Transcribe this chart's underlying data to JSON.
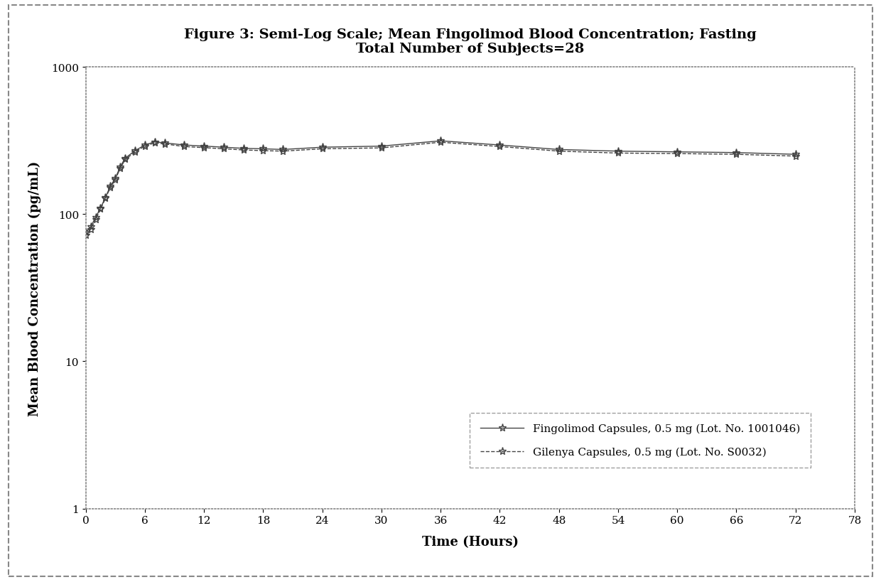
{
  "title_line1": "Figure 3: Semi-Log Scale; Mean Fingolimod Blood Concentration; Fasting",
  "title_line2": "Total Number of Subjects=28",
  "xlabel": "Time (Hours)",
  "ylabel": "Mean Blood Concentration (pg/mL)",
  "xlim": [
    0,
    78
  ],
  "ylim": [
    1,
    1000
  ],
  "xticks": [
    0,
    6,
    12,
    18,
    24,
    30,
    36,
    42,
    48,
    54,
    60,
    66,
    72,
    78
  ],
  "yticks": [
    1,
    10,
    100,
    1000
  ],
  "background_color": "#ffffff",
  "plot_bg_color": "#ffffff",
  "outer_border_color": "#888888",
  "series1_label": "Fingolimod Capsules, 0.5 mg (Lot. No. 1001046)",
  "series2_label": "Gilenya Capsules, 0.5 mg (Lot. No. S0032)",
  "time_points": [
    0,
    0.5,
    1,
    1.5,
    2,
    2.5,
    3,
    3.5,
    4,
    5,
    6,
    7,
    8,
    10,
    12,
    14,
    16,
    18,
    20,
    24,
    30,
    36,
    42,
    48,
    54,
    60,
    66,
    72
  ],
  "series1_values": [
    75,
    82,
    95,
    110,
    130,
    155,
    175,
    210,
    240,
    270,
    295,
    310,
    305,
    295,
    290,
    285,
    280,
    278,
    275,
    285,
    290,
    315,
    295,
    275,
    268,
    265,
    262,
    255
  ],
  "series2_values": [
    72,
    79,
    92,
    108,
    128,
    152,
    172,
    205,
    235,
    265,
    290,
    305,
    300,
    288,
    283,
    278,
    273,
    270,
    268,
    278,
    282,
    308,
    288,
    268,
    260,
    258,
    255,
    248
  ],
  "line_color1": "#444444",
  "line_color2": "#444444",
  "marker1": "*",
  "marker2": "*",
  "linestyle1": "-",
  "linestyle2": "--",
  "title_fontsize": 14,
  "axis_label_fontsize": 13,
  "tick_fontsize": 11,
  "legend_fontsize": 11
}
